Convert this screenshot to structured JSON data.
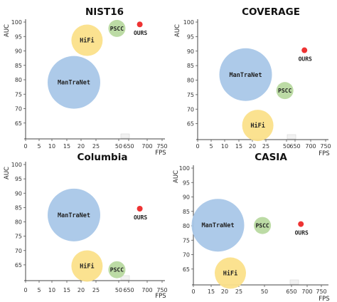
{
  "chart_data": [
    {
      "type": "scatter",
      "title": "NIST16",
      "xlabel": "FPS",
      "ylabel": "AUC",
      "x_ticks": [
        "0",
        "5",
        "10",
        "15",
        "20",
        "25",
        "50",
        "650",
        "700",
        "750"
      ],
      "y_ticks": [
        "65",
        "70",
        "75",
        "80",
        "85",
        "90",
        "95",
        "100"
      ],
      "ylim": [
        60,
        100
      ],
      "points": [
        {
          "label": "ManTraNet",
          "x": 17.5,
          "y": 79.1,
          "color": "#a9c7e8"
        },
        {
          "label": "HiFi",
          "x": 22,
          "y": 93.7,
          "color": "#fbe08a"
        },
        {
          "label": "PSCC",
          "x": 48,
          "y": 97.8,
          "color": "#b8d9a0"
        },
        {
          "label": "OURS",
          "x": 680,
          "y": 99.2,
          "color": "#ee3333"
        }
      ]
    },
    {
      "type": "scatter",
      "title": "COVERAGE",
      "xlabel": "FPS",
      "ylabel": "AUC",
      "x_ticks": [
        "0",
        "5",
        "10",
        "15",
        "20",
        "25",
        "50",
        "650",
        "700",
        "750"
      ],
      "y_ticks": [
        "65",
        "70",
        "75",
        "80",
        "85",
        "90",
        "95",
        "100"
      ],
      "ylim": [
        60,
        100
      ],
      "points": [
        {
          "label": "ManTraNet",
          "x": 17.5,
          "y": 81.9,
          "color": "#a9c7e8"
        },
        {
          "label": "HiFi",
          "x": 22,
          "y": 64.4,
          "color": "#fbe08a"
        },
        {
          "label": "PSCC",
          "x": 48,
          "y": 76.4,
          "color": "#b8d9a0"
        },
        {
          "label": "OURS",
          "x": 680,
          "y": 90.3,
          "color": "#ee3333"
        }
      ]
    },
    {
      "type": "scatter",
      "title": "Columbia",
      "xlabel": "FPS",
      "ylabel": "AUC",
      "x_ticks": [
        "0",
        "5",
        "10",
        "15",
        "20",
        "25",
        "50",
        "650",
        "700",
        "750"
      ],
      "y_ticks": [
        "65",
        "70",
        "75",
        "80",
        "85",
        "90",
        "95",
        "100"
      ],
      "ylim": [
        60,
        100
      ],
      "points": [
        {
          "label": "ManTraNet",
          "x": 17.5,
          "y": 82.4,
          "color": "#a9c7e8"
        },
        {
          "label": "HiFi",
          "x": 22,
          "y": 64.6,
          "color": "#fbe08a"
        },
        {
          "label": "PSCC",
          "x": 48,
          "y": 63.3,
          "color": "#b8d9a0"
        },
        {
          "label": "OURS",
          "x": 680,
          "y": 84.6,
          "color": "#ee3333"
        }
      ]
    },
    {
      "type": "scatter",
      "title": "CASIA",
      "xlabel": "FPS",
      "ylabel": "AUC",
      "x_ticks": [
        "0",
        "15",
        "20",
        "25",
        "50",
        "650",
        "700",
        "750"
      ],
      "y_ticks": [
        "65",
        "70",
        "75",
        "80",
        "85",
        "90",
        "95",
        "100"
      ],
      "ylim": [
        60,
        100
      ],
      "points": [
        {
          "label": "ManTraNet",
          "x": 17.5,
          "y": 80.2,
          "color": "#a9c7e8"
        },
        {
          "label": "HiFi",
          "x": 22,
          "y": 63.6,
          "color": "#fbe08a"
        },
        {
          "label": "PSCC",
          "x": 48,
          "y": 80.1,
          "color": "#b8d9a0"
        },
        {
          "label": "OURS",
          "x": 680,
          "y": 80.6,
          "color": "#ee3333"
        }
      ]
    }
  ]
}
